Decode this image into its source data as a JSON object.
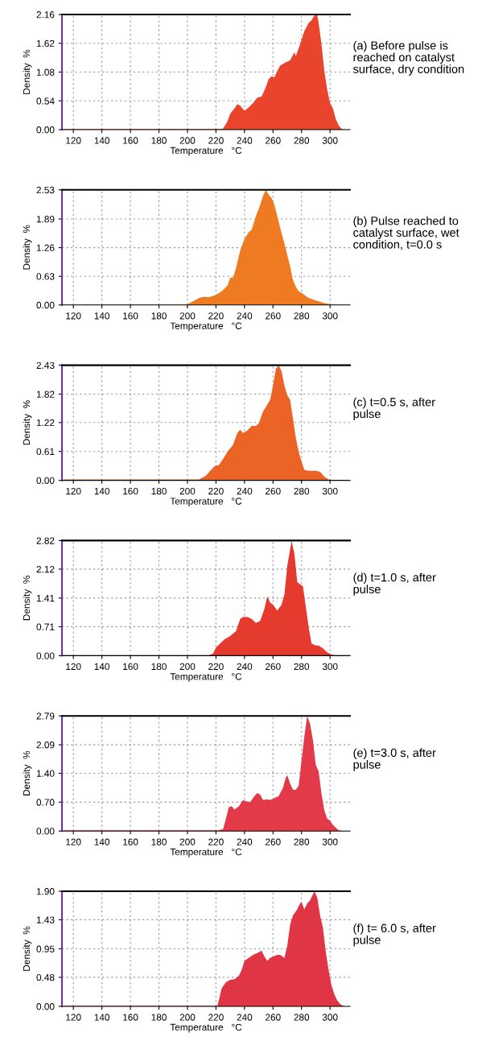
{
  "chart_data": [
    {
      "type": "area",
      "xlabel": "Temperature   °C",
      "ylabel": "Density  %",
      "annotations": [
        "(a) Before pulse is\nreached on catalyst\nsurface, dry condition"
      ],
      "xlim": [
        112,
        314
      ],
      "xticks": [
        120,
        140,
        160,
        180,
        200,
        220,
        240,
        260,
        280,
        300
      ],
      "ylim": [
        0,
        2.16
      ],
      "yticks": [
        {
          "value": 0,
          "label": "0.00"
        },
        {
          "value": 0.54,
          "label": "0.54"
        },
        {
          "value": 1.08,
          "label": "1.08"
        },
        {
          "value": 1.62,
          "label": "1.62"
        },
        {
          "value": 2.16,
          "label": "2.16"
        }
      ],
      "grid": true,
      "series": [
        {
          "color": "#e8452c",
          "x": [
            113,
            140,
            180,
            222,
            225,
            228,
            230,
            233,
            235,
            237,
            240,
            243,
            246,
            249,
            252,
            255,
            257,
            259,
            261,
            263,
            265,
            268,
            272,
            275,
            276,
            279,
            282,
            285,
            287,
            289,
            291,
            292,
            294,
            296,
            298,
            300,
            302,
            304,
            306,
            308,
            310
          ],
          "values": [
            0.01,
            0.01,
            0.01,
            0.01,
            0.02,
            0.15,
            0.3,
            0.4,
            0.48,
            0.45,
            0.35,
            0.42,
            0.5,
            0.6,
            0.62,
            0.8,
            0.95,
            1.0,
            0.98,
            1.1,
            1.2,
            1.25,
            1.3,
            1.45,
            1.38,
            1.6,
            1.85,
            2.0,
            2.05,
            2.14,
            2.16,
            2.0,
            1.6,
            1.1,
            0.75,
            0.5,
            0.4,
            0.2,
            0.08,
            0.02,
            0
          ]
        }
      ]
    },
    {
      "type": "area",
      "xlabel": "Temperature   °C",
      "ylabel": "Density  %",
      "annotations": [
        "(b) Pulse reached to\ncatalyst surface, wet\ncondition, t=0.0 s"
      ],
      "xlim": [
        112,
        314
      ],
      "xticks": [
        120,
        140,
        160,
        180,
        200,
        220,
        240,
        260,
        280,
        300
      ],
      "ylim": [
        0,
        2.53
      ],
      "yticks": [
        {
          "value": 0,
          "label": "0.00"
        },
        {
          "value": 0.63,
          "label": "0.63"
        },
        {
          "value": 1.26,
          "label": "1.26"
        },
        {
          "value": 1.89,
          "label": "1.89"
        },
        {
          "value": 2.53,
          "label": "2.53"
        }
      ],
      "grid": true,
      "series": [
        {
          "color": "#ee7a22",
          "x": [
            113,
            150,
            195,
            200,
            204,
            208,
            211,
            215,
            220,
            224,
            228,
            230,
            232,
            234,
            237,
            240,
            243,
            245,
            248,
            251,
            253,
            255,
            257,
            259,
            261,
            263,
            265,
            268,
            270,
            272,
            274,
            276,
            278,
            281,
            284,
            288,
            292,
            296,
            300,
            305,
            312
          ],
          "values": [
            0.01,
            0.01,
            0.01,
            0.02,
            0.08,
            0.15,
            0.18,
            0.17,
            0.22,
            0.3,
            0.42,
            0.6,
            0.6,
            0.8,
            1.2,
            1.45,
            1.6,
            1.65,
            1.95,
            2.2,
            2.4,
            2.53,
            2.42,
            2.35,
            2.2,
            1.95,
            1.7,
            1.35,
            1.1,
            0.85,
            0.55,
            0.4,
            0.3,
            0.25,
            0.17,
            0.12,
            0.08,
            0.04,
            0.02,
            0.01,
            0
          ]
        }
      ]
    },
    {
      "type": "area",
      "xlabel": "Temperature   °C",
      "ylabel": "Density  %",
      "annotations": [
        "(c) t=0.5 s, after\npulse"
      ],
      "xlim": [
        112,
        314
      ],
      "xticks": [
        120,
        140,
        160,
        180,
        200,
        220,
        240,
        260,
        280,
        300
      ],
      "ylim": [
        0,
        2.43
      ],
      "yticks": [
        {
          "value": 0,
          "label": "0.00"
        },
        {
          "value": 0.61,
          "label": "0.61"
        },
        {
          "value": 1.22,
          "label": "1.22"
        },
        {
          "value": 1.82,
          "label": "1.82"
        },
        {
          "value": 2.43,
          "label": "2.43"
        }
      ],
      "grid": true,
      "series": [
        {
          "color": "#ec6326",
          "x": [
            113,
            160,
            208,
            210,
            213,
            216,
            219,
            222,
            225,
            228,
            232,
            235,
            237,
            239,
            242,
            245,
            248,
            250,
            253,
            256,
            258,
            260,
            262,
            264,
            266,
            268,
            270,
            272,
            274,
            276,
            278,
            280,
            282,
            285,
            290,
            293,
            296,
            299,
            302,
            312
          ],
          "values": [
            0.02,
            0.02,
            0.02,
            0.05,
            0.1,
            0.2,
            0.3,
            0.32,
            0.45,
            0.6,
            0.75,
            1.0,
            1.07,
            1.0,
            1.05,
            1.15,
            1.15,
            1.2,
            1.45,
            1.6,
            1.7,
            2.0,
            2.35,
            2.43,
            2.3,
            2.0,
            1.8,
            1.7,
            1.3,
            0.9,
            0.6,
            0.4,
            0.22,
            0.2,
            0.2,
            0.18,
            0.08,
            0.02,
            0,
            0
          ]
        }
      ]
    },
    {
      "type": "area",
      "xlabel": "Temperature   °C",
      "ylabel": "Density  %",
      "annotations": [
        "(d) t=1.0 s, after\npulse"
      ],
      "xlim": [
        112,
        314
      ],
      "xticks": [
        120,
        140,
        160,
        180,
        200,
        220,
        240,
        260,
        280,
        300
      ],
      "ylim": [
        0,
        2.82
      ],
      "yticks": [
        {
          "value": 0,
          "label": "0.00"
        },
        {
          "value": 0.71,
          "label": "0.71"
        },
        {
          "value": 1.41,
          "label": "1.41"
        },
        {
          "value": 2.12,
          "label": "2.12"
        },
        {
          "value": 2.82,
          "label": "2.82"
        }
      ],
      "grid": true,
      "series": [
        {
          "color": "#e53a2e",
          "x": [
            113,
            160,
            215,
            218,
            220,
            223,
            226,
            230,
            234,
            237,
            239,
            242,
            245,
            248,
            251,
            254,
            256,
            258,
            260,
            263,
            266,
            268,
            270,
            272,
            273,
            275,
            277,
            279,
            281,
            283,
            285,
            287,
            290,
            292,
            295,
            298,
            301,
            305,
            312
          ],
          "values": [
            0.01,
            0.01,
            0.01,
            0.05,
            0.2,
            0.3,
            0.4,
            0.48,
            0.6,
            0.9,
            0.95,
            0.95,
            0.9,
            0.8,
            0.85,
            1.15,
            1.45,
            1.3,
            1.25,
            1.1,
            1.25,
            1.5,
            2.2,
            2.6,
            2.82,
            2.5,
            1.8,
            1.75,
            1.7,
            1.2,
            0.7,
            0.3,
            0.25,
            0.25,
            0.18,
            0.08,
            0.03,
            0,
            0
          ]
        }
      ]
    },
    {
      "type": "area",
      "xlabel": "Temperature   °C",
      "ylabel": "Density  %",
      "annotations": [
        "(e) t=3.0 s, after\npulse"
      ],
      "xlim": [
        112,
        314
      ],
      "xticks": [
        120,
        140,
        160,
        180,
        200,
        220,
        240,
        260,
        280,
        300
      ],
      "ylim": [
        0,
        2.79
      ],
      "yticks": [
        {
          "value": 0,
          "label": "0.00"
        },
        {
          "value": 0.7,
          "label": "0.70"
        },
        {
          "value": 1.4,
          "label": "1.40"
        },
        {
          "value": 2.09,
          "label": "2.09"
        },
        {
          "value": 2.79,
          "label": "2.79"
        }
      ],
      "grid": true,
      "series": [
        {
          "color": "#e23a48",
          "x": [
            113,
            170,
            222,
            225,
            227,
            229,
            231,
            233,
            236,
            239,
            241,
            244,
            247,
            249,
            251,
            253,
            256,
            258,
            261,
            264,
            267,
            269,
            270,
            272,
            274,
            276,
            278,
            280,
            282,
            284,
            286,
            288,
            290,
            292,
            294,
            296,
            298,
            300,
            302,
            304,
            306,
            310
          ],
          "values": [
            0.02,
            0.02,
            0.02,
            0.05,
            0.3,
            0.58,
            0.6,
            0.52,
            0.6,
            0.75,
            0.72,
            0.7,
            0.85,
            0.92,
            0.88,
            0.75,
            0.77,
            0.75,
            0.8,
            0.85,
            1.05,
            1.3,
            1.35,
            1.15,
            1.0,
            1.0,
            1.1,
            1.7,
            2.3,
            2.79,
            2.6,
            2.2,
            1.6,
            1.45,
            0.9,
            0.5,
            0.3,
            0.25,
            0.15,
            0.08,
            0.02,
            0
          ]
        }
      ]
    },
    {
      "type": "area",
      "xlabel": "Temperature   °C",
      "ylabel": "Density  %",
      "annotations": [
        "(f) t= 6.0 s, after\npulse"
      ],
      "xlim": [
        112,
        314
      ],
      "xticks": [
        120,
        140,
        160,
        180,
        200,
        220,
        240,
        260,
        280,
        300
      ],
      "ylim": [
        0,
        1.9
      ],
      "yticks": [
        {
          "value": 0,
          "label": "0.00"
        },
        {
          "value": 0.48,
          "label": "0.48"
        },
        {
          "value": 0.95,
          "label": "0.95"
        },
        {
          "value": 1.43,
          "label": "1.43"
        },
        {
          "value": 1.9,
          "label": "1.90"
        }
      ],
      "grid": true,
      "series": [
        {
          "color": "#e03545",
          "x": [
            113,
            170,
            221,
            222,
            224,
            227,
            230,
            233,
            236,
            238,
            240,
            243,
            246,
            249,
            252,
            254,
            256,
            258,
            261,
            263,
            265,
            268,
            270,
            272,
            274,
            277,
            279,
            280,
            282,
            284,
            286,
            288,
            289,
            291,
            293,
            295,
            297,
            299,
            301,
            303,
            305,
            307,
            310
          ],
          "values": [
            0.01,
            0.01,
            0.01,
            0.1,
            0.3,
            0.4,
            0.44,
            0.45,
            0.5,
            0.6,
            0.75,
            0.8,
            0.85,
            0.88,
            0.92,
            0.82,
            0.75,
            0.8,
            0.83,
            0.85,
            0.85,
            0.8,
            1.0,
            1.35,
            1.5,
            1.6,
            1.7,
            1.72,
            1.6,
            1.7,
            1.75,
            1.85,
            1.9,
            1.8,
            1.5,
            1.3,
            0.9,
            0.6,
            0.35,
            0.2,
            0.1,
            0.04,
            0
          ]
        }
      ]
    }
  ]
}
